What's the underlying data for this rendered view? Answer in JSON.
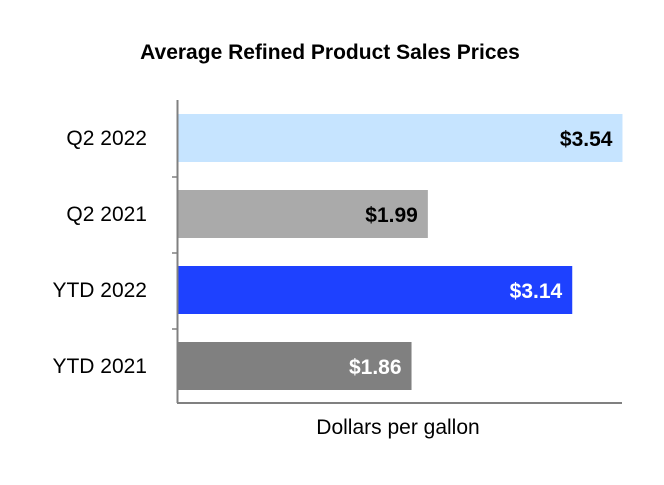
{
  "chart_data": {
    "type": "bar",
    "orientation": "horizontal",
    "title": "Average Refined Product Sales Prices",
    "xlabel": "Dollars per gallon",
    "ylabel": "",
    "xlim": [
      0,
      3.6
    ],
    "grid": false,
    "categories": [
      "Q2 2022",
      "Q2 2021",
      "YTD 2022",
      "YTD 2021"
    ],
    "values": [
      3.54,
      1.99,
      3.14,
      1.86
    ],
    "data_labels": [
      "$3.54",
      "$1.99",
      "$3.14",
      "$1.86"
    ],
    "bar_colors": [
      "#c6e4ff",
      "#aaaaaa",
      "#1e41ff",
      "#808080"
    ],
    "label_colors": [
      "#000000",
      "#000000",
      "#ffffff",
      "#ffffff"
    ]
  }
}
